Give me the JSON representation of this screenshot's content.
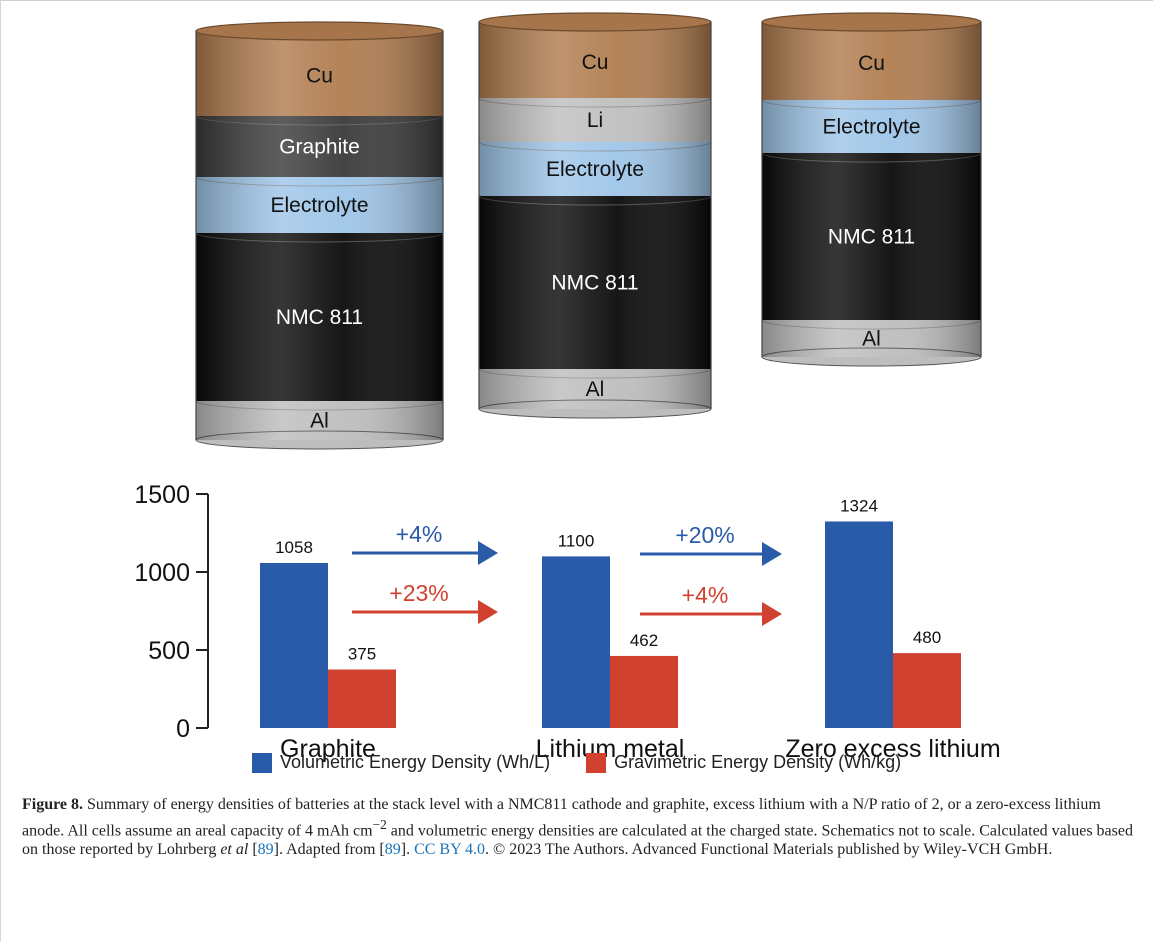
{
  "colors": {
    "volumetric": "#2a5ba8",
    "gravimetric": "#d0412f",
    "cu": "#b07c4f",
    "graphite": "#3a3a3a",
    "li": "#bfbfbf",
    "electrolyte": "#9ec5e8",
    "nmc": "#0a0a0a",
    "al": "#bdbdbd"
  },
  "schematics": [
    {
      "layers": [
        {
          "label": "Cu",
          "kind": "cu"
        },
        {
          "label": "Graphite",
          "kind": "graphite"
        },
        {
          "label": "Electrolyte",
          "kind": "electrolyte"
        },
        {
          "label": "NMC 811",
          "kind": "nmc"
        },
        {
          "label": "Al",
          "kind": "al"
        }
      ]
    },
    {
      "layers": [
        {
          "label": "Cu",
          "kind": "cu"
        },
        {
          "label": "Li",
          "kind": "li"
        },
        {
          "label": "Electrolyte",
          "kind": "electrolyte"
        },
        {
          "label": "NMC 811",
          "kind": "nmc"
        },
        {
          "label": "Al",
          "kind": "al"
        }
      ]
    },
    {
      "layers": [
        {
          "label": "Cu",
          "kind": "cu"
        },
        {
          "label": "Electrolyte",
          "kind": "electrolyte"
        },
        {
          "label": "NMC 811",
          "kind": "nmc"
        },
        {
          "label": "Al",
          "kind": "al"
        }
      ]
    }
  ],
  "chart_data": {
    "type": "bar",
    "categories": [
      "Graphite",
      "Lithium metal",
      "Zero excess lithium"
    ],
    "series": [
      {
        "name": "Volumetric Energy Density (Wh/L)",
        "values": [
          1058,
          1100,
          1324
        ]
      },
      {
        "name": "Gravimetric Energy Density (Wh/kg)",
        "values": [
          375,
          462,
          480
        ]
      }
    ],
    "yticks": [
      0,
      500,
      1000,
      1500
    ],
    "ylim": [
      0,
      1500
    ],
    "grid": false,
    "legend": "bottom",
    "annotations": [
      {
        "from": "Graphite",
        "to": "Lithium metal",
        "series": "volumetric",
        "text": "+4%"
      },
      {
        "from": "Graphite",
        "to": "Lithium metal",
        "series": "gravimetric",
        "text": "+23%"
      },
      {
        "from": "Lithium metal",
        "to": "Zero excess lithium",
        "series": "volumetric",
        "text": "+20%"
      },
      {
        "from": "Lithium metal",
        "to": "Zero excess lithium",
        "series": "gravimetric",
        "text": "+4%"
      }
    ]
  },
  "caption": {
    "label": "Figure 8.",
    "p1": " Summary of energy densities of batteries at the stack level with a NMC811 cathode and graphite, excess lithium with a N/P ratio of 2, or a zero-excess lithium anode. All cells assume an areal capacity of 4 mAh cm",
    "sup": "−2",
    "p2": " and volumetric energy densities are calculated at the charged state. Schematics not to scale. Calculated values based on those reported by Lohrberg ",
    "etal": "et al",
    "p3": " [",
    "ref1": "89",
    "p4": "]. Adapted from [",
    "ref2": "89",
    "p5": "]. ",
    "license": "CC BY 4.0",
    "p6": ". © 2023 The Authors. Advanced Functional Materials published by Wiley-VCH GmbH."
  }
}
